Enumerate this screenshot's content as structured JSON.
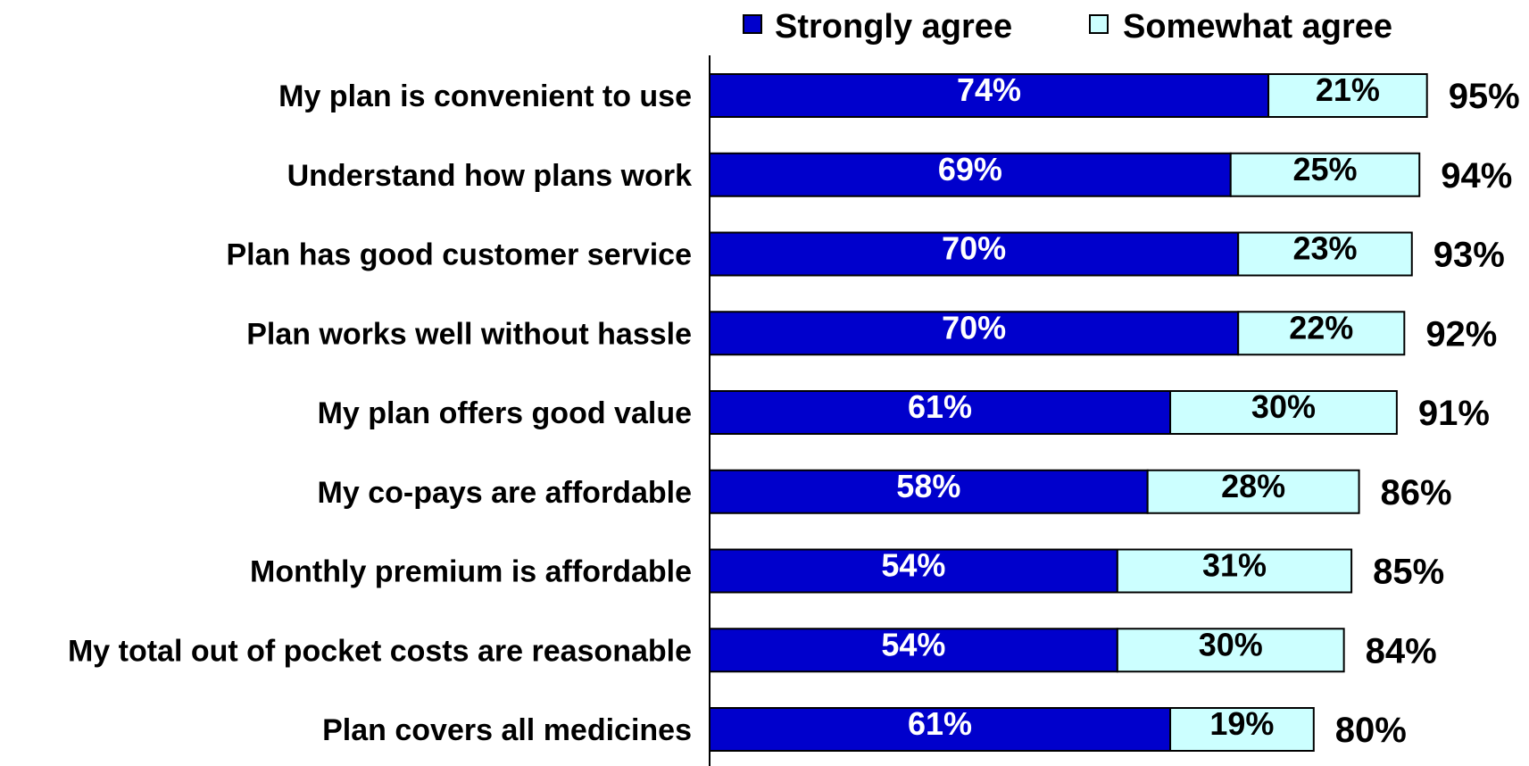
{
  "chart_data": {
    "type": "bar",
    "orientation": "horizontal",
    "stacked": true,
    "categories": [
      "My plan is convenient to use",
      "Understand how plans work",
      "Plan has good customer service",
      "Plan works well without hassle",
      "My plan offers good value",
      "My co-pays are affordable",
      "Monthly premium is affordable",
      "My total out of pocket costs are reasonable",
      "Plan covers all medicines"
    ],
    "series": [
      {
        "name": "Strongly agree",
        "color": "#0000CC",
        "label_color": "#FFFFFF",
        "values": [
          74,
          69,
          70,
          70,
          61,
          58,
          54,
          54,
          61
        ],
        "labels": [
          "74%",
          "69%",
          "70%",
          "70%",
          "61%",
          "58%",
          "54%",
          "54%",
          "61%"
        ]
      },
      {
        "name": "Somewhat agree",
        "color": "#CCFFFF",
        "label_color": "#000000",
        "values": [
          21,
          25,
          23,
          22,
          30,
          28,
          31,
          30,
          19
        ],
        "labels": [
          "21%",
          "25%",
          "23%",
          "22%",
          "30%",
          "28%",
          "31%",
          "30%",
          "19%"
        ]
      }
    ],
    "totals": [
      95,
      94,
      93,
      92,
      91,
      86,
      85,
      84,
      80
    ],
    "total_labels": [
      "95%",
      "94%",
      "93%",
      "92%",
      "91%",
      "86%",
      "85%",
      "84%",
      "80%"
    ],
    "xlim": [
      0,
      95
    ],
    "grid": false,
    "legend_position": "top"
  }
}
